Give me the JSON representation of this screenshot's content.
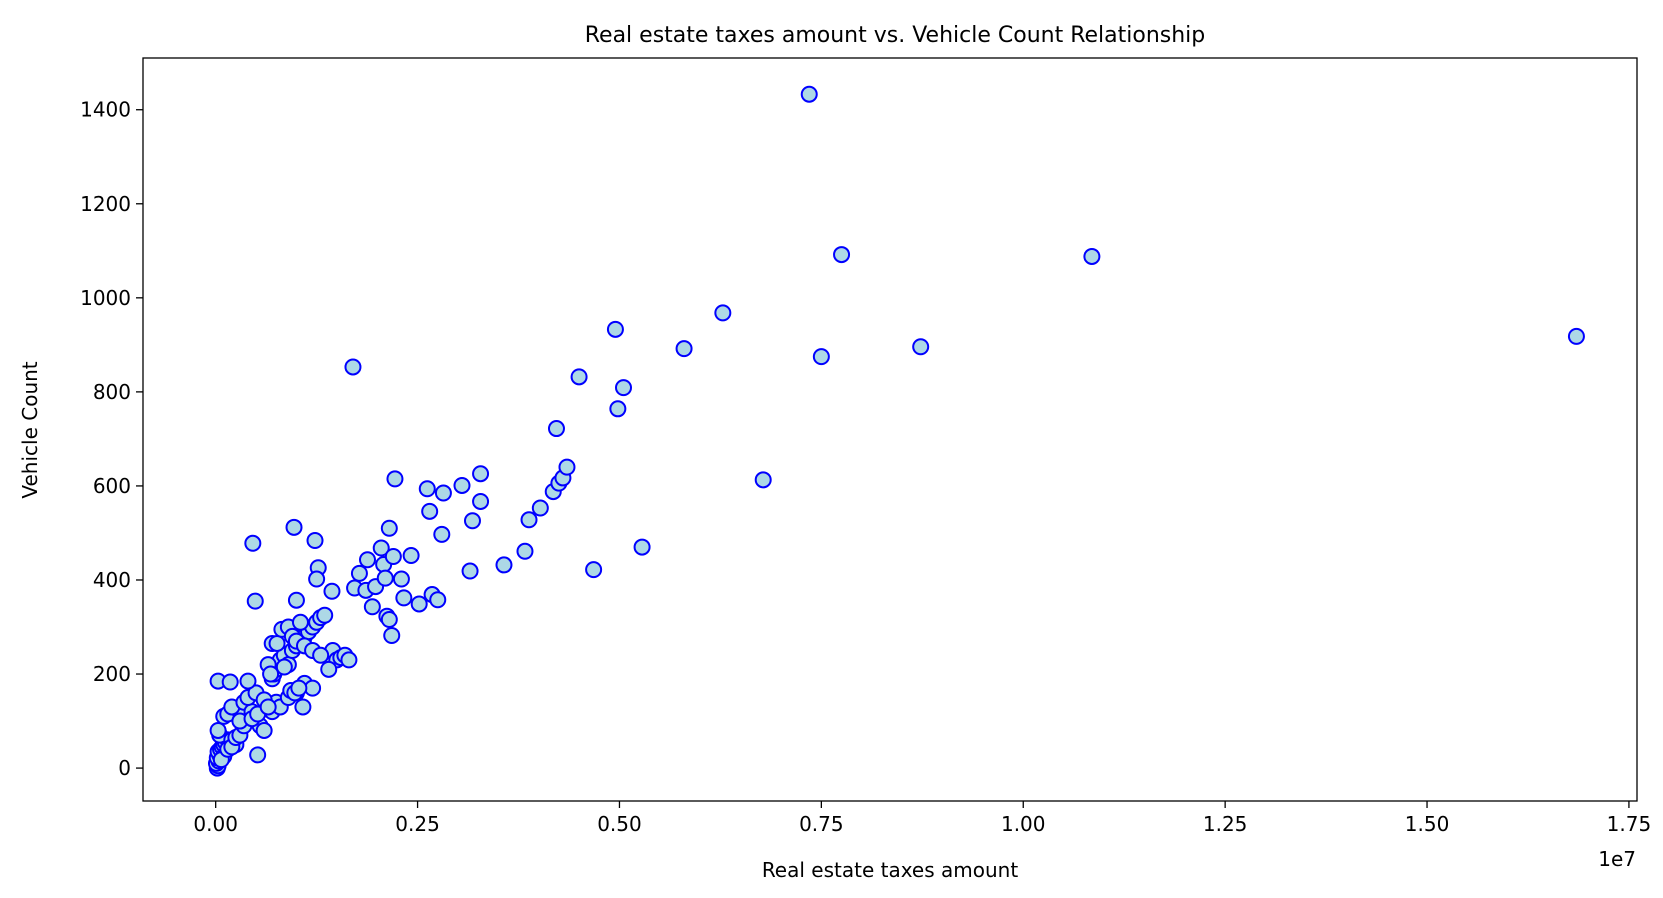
{
  "chart_data": {
    "type": "scatter",
    "title": "Real estate taxes amount vs. Vehicle Count Relationship",
    "xlabel": "Real estate taxes amount",
    "ylabel": "Vehicle Count",
    "x_offset_label": "1e7",
    "xlim": [
      -0.09,
      1.76
    ],
    "ylim": [
      -70,
      1510
    ],
    "x_ticks": [
      0.0,
      0.25,
      0.5,
      0.75,
      1.0,
      1.25,
      1.5,
      1.75
    ],
    "x_tick_labels": [
      "0.00",
      "0.25",
      "0.50",
      "0.75",
      "1.00",
      "1.25",
      "1.50",
      "1.75"
    ],
    "y_ticks": [
      0,
      200,
      400,
      600,
      800,
      1000,
      1200,
      1400
    ],
    "y_tick_labels": [
      "0",
      "200",
      "400",
      "600",
      "800",
      "1000",
      "1200",
      "1400"
    ],
    "grid": false,
    "marker_face_color": "#add8e6",
    "marker_edge_color": "#0000ff",
    "points": [
      [
        0.002,
        0
      ],
      [
        0.003,
        5
      ],
      [
        0.001,
        10
      ],
      [
        0.004,
        15
      ],
      [
        0.002,
        22
      ],
      [
        0.005,
        28
      ],
      [
        0.003,
        35
      ],
      [
        0.006,
        40
      ],
      [
        0.008,
        45
      ],
      [
        0.01,
        50
      ],
      [
        0.012,
        55
      ],
      [
        0.015,
        60
      ],
      [
        0.005,
        70
      ],
      [
        0.003,
        80
      ],
      [
        0.02,
        60
      ],
      [
        0.025,
        50
      ],
      [
        0.01,
        25
      ],
      [
        0.007,
        18
      ],
      [
        0.015,
        40
      ],
      [
        0.02,
        45
      ],
      [
        0.025,
        65
      ],
      [
        0.03,
        70
      ],
      [
        0.035,
        90
      ],
      [
        0.01,
        110
      ],
      [
        0.015,
        115
      ],
      [
        0.03,
        120
      ],
      [
        0.02,
        130
      ],
      [
        0.035,
        140
      ],
      [
        0.03,
        100
      ],
      [
        0.045,
        120
      ],
      [
        0.04,
        150
      ],
      [
        0.05,
        160
      ],
      [
        0.055,
        90
      ],
      [
        0.06,
        80
      ],
      [
        0.07,
        120
      ],
      [
        0.075,
        140
      ],
      [
        0.08,
        130
      ],
      [
        0.09,
        150
      ],
      [
        0.1,
        160
      ],
      [
        0.11,
        180
      ],
      [
        0.12,
        170
      ],
      [
        0.003,
        185
      ],
      [
        0.018,
        183
      ],
      [
        0.04,
        185
      ],
      [
        0.045,
        105
      ],
      [
        0.052,
        115
      ],
      [
        0.06,
        145
      ],
      [
        0.065,
        130
      ],
      [
        0.07,
        190
      ],
      [
        0.072,
        200
      ],
      [
        0.075,
        210
      ],
      [
        0.08,
        230
      ],
      [
        0.085,
        240
      ],
      [
        0.09,
        220
      ],
      [
        0.095,
        250
      ],
      [
        0.1,
        260
      ],
      [
        0.105,
        270
      ],
      [
        0.11,
        280
      ],
      [
        0.115,
        290
      ],
      [
        0.12,
        300
      ],
      [
        0.125,
        310
      ],
      [
        0.13,
        320
      ],
      [
        0.135,
        325
      ],
      [
        0.14,
        240
      ],
      [
        0.145,
        250
      ],
      [
        0.15,
        230
      ],
      [
        0.155,
        235
      ],
      [
        0.16,
        240
      ],
      [
        0.165,
        230
      ],
      [
        0.07,
        265
      ],
      [
        0.076,
        265
      ],
      [
        0.082,
        295
      ],
      [
        0.09,
        300
      ],
      [
        0.095,
        280
      ],
      [
        0.1,
        270
      ],
      [
        0.105,
        310
      ],
      [
        0.11,
        260
      ],
      [
        0.12,
        250
      ],
      [
        0.13,
        240
      ],
      [
        0.14,
        210
      ],
      [
        0.093,
        165
      ],
      [
        0.098,
        160
      ],
      [
        0.103,
        170
      ],
      [
        0.108,
        130
      ],
      [
        0.065,
        220
      ],
      [
        0.068,
        200
      ],
      [
        0.085,
        215
      ],
      [
        0.052,
        28
      ],
      [
        0.046,
        478
      ],
      [
        0.049,
        355
      ],
      [
        0.097,
        512
      ],
      [
        0.123,
        484
      ],
      [
        0.127,
        426
      ],
      [
        0.125,
        402
      ],
      [
        0.144,
        376
      ],
      [
        0.1,
        357
      ],
      [
        0.17,
        853
      ],
      [
        0.172,
        383
      ],
      [
        0.178,
        414
      ],
      [
        0.186,
        378
      ],
      [
        0.188,
        443
      ],
      [
        0.194,
        343
      ],
      [
        0.198,
        386
      ],
      [
        0.205,
        468
      ],
      [
        0.208,
        433
      ],
      [
        0.21,
        404
      ],
      [
        0.212,
        323
      ],
      [
        0.215,
        316
      ],
      [
        0.218,
        282
      ],
      [
        0.22,
        450
      ],
      [
        0.215,
        510
      ],
      [
        0.222,
        615
      ],
      [
        0.23,
        402
      ],
      [
        0.233,
        362
      ],
      [
        0.242,
        452
      ],
      [
        0.252,
        349
      ],
      [
        0.262,
        594
      ],
      [
        0.265,
        546
      ],
      [
        0.268,
        369
      ],
      [
        0.275,
        358
      ],
      [
        0.28,
        497
      ],
      [
        0.282,
        585
      ],
      [
        0.305,
        601
      ],
      [
        0.315,
        419
      ],
      [
        0.318,
        526
      ],
      [
        0.328,
        626
      ],
      [
        0.328,
        567
      ],
      [
        0.357,
        432
      ],
      [
        0.383,
        461
      ],
      [
        0.388,
        528
      ],
      [
        0.402,
        553
      ],
      [
        0.418,
        588
      ],
      [
        0.422,
        722
      ],
      [
        0.425,
        606
      ],
      [
        0.43,
        617
      ],
      [
        0.435,
        640
      ],
      [
        0.45,
        832
      ],
      [
        0.468,
        422
      ],
      [
        0.495,
        933
      ],
      [
        0.498,
        764
      ],
      [
        0.505,
        809
      ],
      [
        0.528,
        470
      ],
      [
        0.58,
        892
      ],
      [
        0.628,
        968
      ],
      [
        0.678,
        613
      ],
      [
        0.735,
        1433
      ],
      [
        0.75,
        875
      ],
      [
        0.775,
        1092
      ],
      [
        0.873,
        896
      ],
      [
        1.085,
        1088
      ],
      [
        1.685,
        918
      ]
    ]
  }
}
